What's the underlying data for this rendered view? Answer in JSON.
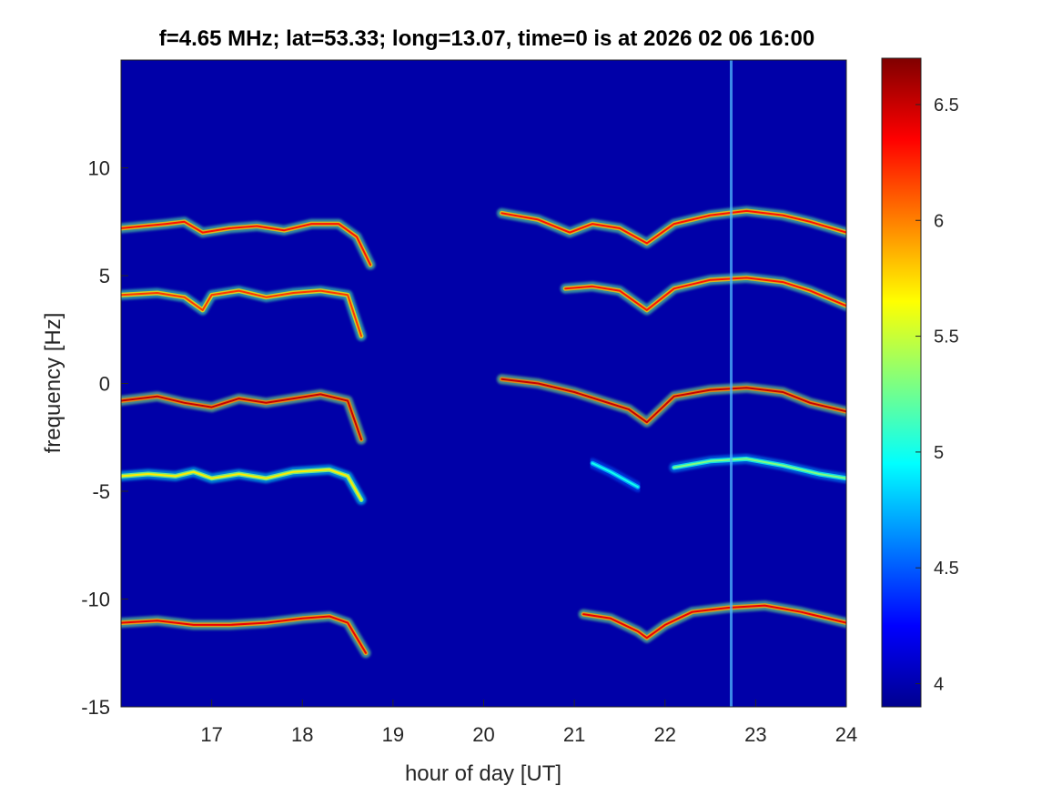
{
  "chart_data": {
    "type": "heatmap",
    "title": "f=4.65 MHz;  lat=53.33; long=13.07, time=0 is at 2026 02 06 16:00",
    "xlabel": "hour of day [UT]",
    "ylabel": "frequency [Hz]",
    "xlim": [
      16,
      24
    ],
    "ylim": [
      -15,
      15
    ],
    "x_ticks": [
      "17",
      "18",
      "19",
      "20",
      "21",
      "22",
      "23",
      "24"
    ],
    "y_ticks": [
      "-15",
      "-10",
      "-5",
      "0",
      "5",
      "10"
    ],
    "colorbar": {
      "colormap": "jet",
      "range": [
        3.9,
        6.7
      ],
      "ticks": [
        "4",
        "4.5",
        "5",
        "5.5",
        "6",
        "6.5"
      ]
    },
    "background_level": 3.9,
    "vertical_streak_hour": 22.73,
    "traces": [
      {
        "name": "",
        "intensity": 6.3,
        "points": [
          [
            16.0,
            7.2
          ],
          [
            16.5,
            7.4
          ],
          [
            16.7,
            7.5
          ],
          [
            16.9,
            7.0
          ],
          [
            17.2,
            7.2
          ],
          [
            17.5,
            7.3
          ],
          [
            17.8,
            7.1
          ],
          [
            18.1,
            7.4
          ],
          [
            18.4,
            7.4
          ],
          [
            18.6,
            6.8
          ],
          [
            18.75,
            5.5
          ]
        ]
      },
      {
        "name": "",
        "intensity": 6.2,
        "points": [
          [
            16.0,
            4.1
          ],
          [
            16.4,
            4.2
          ],
          [
            16.7,
            4.0
          ],
          [
            16.9,
            3.4
          ],
          [
            17.0,
            4.1
          ],
          [
            17.3,
            4.3
          ],
          [
            17.6,
            4.0
          ],
          [
            17.9,
            4.2
          ],
          [
            18.2,
            4.3
          ],
          [
            18.5,
            4.1
          ],
          [
            18.65,
            2.2
          ]
        ]
      },
      {
        "name": "",
        "intensity": 6.5,
        "points": [
          [
            16.0,
            -0.8
          ],
          [
            16.4,
            -0.6
          ],
          [
            16.7,
            -0.9
          ],
          [
            17.0,
            -1.1
          ],
          [
            17.3,
            -0.7
          ],
          [
            17.6,
            -0.9
          ],
          [
            17.9,
            -0.7
          ],
          [
            18.2,
            -0.5
          ],
          [
            18.5,
            -0.8
          ],
          [
            18.65,
            -2.6
          ]
        ]
      },
      {
        "name": "",
        "intensity": 5.7,
        "points": [
          [
            16.0,
            -4.3
          ],
          [
            16.3,
            -4.2
          ],
          [
            16.6,
            -4.3
          ],
          [
            16.8,
            -4.1
          ],
          [
            17.0,
            -4.4
          ],
          [
            17.3,
            -4.2
          ],
          [
            17.6,
            -4.4
          ],
          [
            17.9,
            -4.1
          ],
          [
            18.3,
            -4.0
          ],
          [
            18.5,
            -4.3
          ],
          [
            18.65,
            -5.4
          ]
        ]
      },
      {
        "name": "",
        "intensity": 6.4,
        "points": [
          [
            16.0,
            -11.1
          ],
          [
            16.4,
            -11.0
          ],
          [
            16.8,
            -11.2
          ],
          [
            17.2,
            -11.2
          ],
          [
            17.6,
            -11.1
          ],
          [
            18.0,
            -10.9
          ],
          [
            18.3,
            -10.8
          ],
          [
            18.5,
            -11.1
          ],
          [
            18.7,
            -12.5
          ]
        ]
      },
      {
        "name": "",
        "intensity": 6.3,
        "points": [
          [
            20.2,
            7.9
          ],
          [
            20.6,
            7.6
          ],
          [
            20.95,
            7.0
          ],
          [
            21.2,
            7.4
          ],
          [
            21.5,
            7.2
          ],
          [
            21.8,
            6.5
          ],
          [
            22.1,
            7.4
          ],
          [
            22.5,
            7.8
          ],
          [
            22.9,
            8.0
          ],
          [
            23.3,
            7.8
          ],
          [
            23.6,
            7.5
          ],
          [
            24.0,
            7.0
          ]
        ]
      },
      {
        "name": "",
        "intensity": 6.3,
        "points": [
          [
            20.9,
            4.4
          ],
          [
            21.2,
            4.5
          ],
          [
            21.5,
            4.3
          ],
          [
            21.8,
            3.4
          ],
          [
            22.1,
            4.4
          ],
          [
            22.5,
            4.8
          ],
          [
            22.9,
            4.9
          ],
          [
            23.3,
            4.7
          ],
          [
            23.6,
            4.3
          ],
          [
            24.0,
            3.6
          ]
        ]
      },
      {
        "name": "",
        "intensity": 6.5,
        "points": [
          [
            20.2,
            0.2
          ],
          [
            20.6,
            0.0
          ],
          [
            21.0,
            -0.4
          ],
          [
            21.3,
            -0.8
          ],
          [
            21.6,
            -1.2
          ],
          [
            21.8,
            -1.8
          ],
          [
            22.1,
            -0.6
          ],
          [
            22.5,
            -0.3
          ],
          [
            22.9,
            -0.2
          ],
          [
            23.3,
            -0.4
          ],
          [
            23.6,
            -0.9
          ],
          [
            24.0,
            -1.3
          ]
        ]
      },
      {
        "name": "",
        "intensity": 5.0,
        "points": [
          [
            21.2,
            -3.7
          ],
          [
            21.4,
            -4.1
          ],
          [
            21.7,
            -4.8
          ]
        ]
      },
      {
        "name": "",
        "intensity": 5.3,
        "points": [
          [
            22.1,
            -3.9
          ],
          [
            22.5,
            -3.6
          ],
          [
            22.9,
            -3.5
          ],
          [
            23.3,
            -3.8
          ],
          [
            23.7,
            -4.2
          ],
          [
            24.0,
            -4.4
          ]
        ]
      },
      {
        "name": "",
        "intensity": 6.4,
        "points": [
          [
            21.1,
            -10.7
          ],
          [
            21.4,
            -10.9
          ],
          [
            21.7,
            -11.5
          ],
          [
            21.8,
            -11.8
          ],
          [
            22.0,
            -11.2
          ],
          [
            22.3,
            -10.6
          ],
          [
            22.7,
            -10.4
          ],
          [
            23.1,
            -10.3
          ],
          [
            23.5,
            -10.6
          ],
          [
            24.0,
            -11.1
          ]
        ]
      }
    ]
  }
}
